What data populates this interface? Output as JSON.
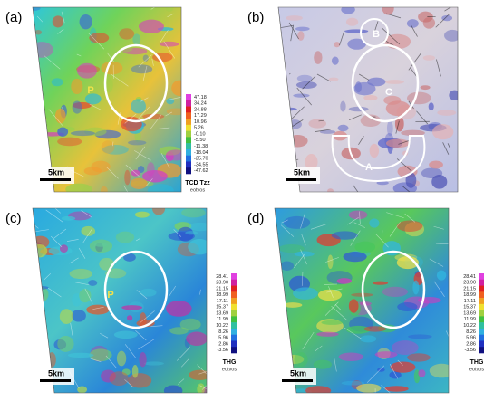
{
  "panels": [
    {
      "label": "(a)",
      "annotations": [
        "P"
      ],
      "scale": "5km",
      "colorbar": {
        "title": "TCD Tzz",
        "unit": "eotvos",
        "ticks": [
          "47.18",
          "34.24",
          "24.88",
          "17.29",
          "10.96",
          "5.26",
          "-0.10",
          "-5.50",
          "-11.38",
          "-18.04",
          "-25.70",
          "-34.55",
          "-47.62"
        ]
      }
    },
    {
      "label": "(b)",
      "annotations": [
        "B",
        "C",
        "A"
      ],
      "scale": "5km"
    },
    {
      "label": "(c)",
      "annotations": [
        "P"
      ],
      "scale": "5km",
      "colorbar": {
        "title": "THG",
        "unit": "eotvos",
        "ticks": [
          "28.41",
          "23.90",
          "21.15",
          "18.99",
          "17.11",
          "15.37",
          "13.69",
          "11.99",
          "10.22",
          "8.26",
          "5.96",
          "2.86",
          "-3.56"
        ]
      }
    },
    {
      "label": "(d)",
      "annotations": [],
      "scale": "5km",
      "colorbar": {
        "title": "THG",
        "unit": "eotvos",
        "ticks": [
          "28.41",
          "23.90",
          "21.15",
          "18.99",
          "17.11",
          "15.37",
          "13.69",
          "11.99",
          "10.22",
          "8.26",
          "5.96",
          "2.86",
          "-3.56"
        ]
      }
    }
  ]
}
